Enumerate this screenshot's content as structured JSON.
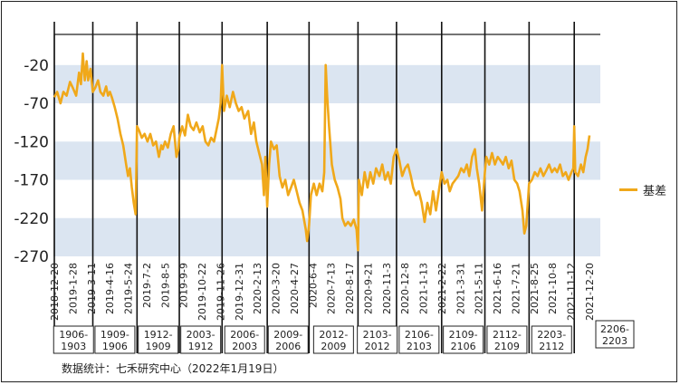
{
  "chart_data": {
    "type": "line",
    "title": "",
    "xlabel": "",
    "ylabel": "",
    "ylim": [
      -270,
      20
    ],
    "y_ticks": [
      -20,
      -70,
      -120,
      -170,
      -220,
      -270
    ],
    "grid": "horizontal alternating bands",
    "series": [
      {
        "name": "基差",
        "color": "#f0a81a",
        "points": [
          [
            "2018-12-20",
            -62
          ],
          [
            "2018-12-26",
            -55
          ],
          [
            "2019-01-02",
            -70
          ],
          [
            "2019-01-08",
            -55
          ],
          [
            "2019-01-15",
            -60
          ],
          [
            "2019-01-22",
            -42
          ],
          [
            "2019-01-28",
            -50
          ],
          [
            "2019-02-04",
            -60
          ],
          [
            "2019-02-10",
            -30
          ],
          [
            "2019-02-14",
            -45
          ],
          [
            "2019-02-18",
            -5
          ],
          [
            "2019-02-22",
            -40
          ],
          [
            "2019-02-26",
            -15
          ],
          [
            "2019-03-01",
            -40
          ],
          [
            "2019-03-06",
            -25
          ],
          [
            "2019-03-11",
            -55
          ],
          [
            "2019-03-16",
            -50
          ],
          [
            "2019-03-22",
            -40
          ],
          [
            "2019-03-27",
            -55
          ],
          [
            "2019-04-02",
            -60
          ],
          [
            "2019-04-08",
            -48
          ],
          [
            "2019-04-12",
            -60
          ],
          [
            "2019-04-16",
            -55
          ],
          [
            "2019-04-20",
            -62
          ],
          [
            "2019-04-26",
            -75
          ],
          [
            "2019-05-02",
            -90
          ],
          [
            "2019-05-08",
            -110
          ],
          [
            "2019-05-14",
            -125
          ],
          [
            "2019-05-20",
            -150
          ],
          [
            "2019-05-24",
            -165
          ],
          [
            "2019-05-28",
            -155
          ],
          [
            "2019-06-01",
            -180
          ],
          [
            "2019-06-05",
            -200
          ],
          [
            "2019-06-09",
            -215
          ],
          [
            "2019-06-12",
            -100
          ],
          [
            "2019-06-16",
            -105
          ],
          [
            "2019-06-22",
            -115
          ],
          [
            "2019-06-28",
            -110
          ],
          [
            "2019-07-04",
            -120
          ],
          [
            "2019-07-10",
            -110
          ],
          [
            "2019-07-16",
            -125
          ],
          [
            "2019-07-22",
            -120
          ],
          [
            "2019-07-28",
            -140
          ],
          [
            "2019-08-02",
            -125
          ],
          [
            "2019-08-05",
            -130
          ],
          [
            "2019-08-10",
            -120
          ],
          [
            "2019-08-16",
            -128
          ],
          [
            "2019-08-22",
            -110
          ],
          [
            "2019-08-28",
            -100
          ],
          [
            "2019-09-03",
            -140
          ],
          [
            "2019-09-07",
            -130
          ],
          [
            "2019-09-09",
            -115
          ],
          [
            "2019-09-15",
            -100
          ],
          [
            "2019-09-21",
            -112
          ],
          [
            "2019-09-27",
            -85
          ],
          [
            "2019-10-03",
            -100
          ],
          [
            "2019-10-09",
            -105
          ],
          [
            "2019-10-15",
            -95
          ],
          [
            "2019-10-22",
            -108
          ],
          [
            "2019-10-28",
            -100
          ],
          [
            "2019-11-03",
            -120
          ],
          [
            "2019-11-09",
            -125
          ],
          [
            "2019-11-15",
            -115
          ],
          [
            "2019-11-21",
            -120
          ],
          [
            "2019-11-26",
            -105
          ],
          [
            "2019-12-01",
            -90
          ],
          [
            "2019-12-05",
            -70
          ],
          [
            "2019-12-08",
            -20
          ],
          [
            "2019-12-12",
            -80
          ],
          [
            "2019-12-18",
            -60
          ],
          [
            "2019-12-24",
            -75
          ],
          [
            "2019-12-31",
            -55
          ],
          [
            "2020-01-06",
            -70
          ],
          [
            "2020-01-12",
            -80
          ],
          [
            "2020-01-18",
            -75
          ],
          [
            "2020-01-24",
            -90
          ],
          [
            "2020-02-01",
            -80
          ],
          [
            "2020-02-07",
            -110
          ],
          [
            "2020-02-13",
            -95
          ],
          [
            "2020-02-18",
            -120
          ],
          [
            "2020-02-24",
            -135
          ],
          [
            "2020-03-01",
            -150
          ],
          [
            "2020-03-05",
            -190
          ],
          [
            "2020-03-08",
            -140
          ],
          [
            "2020-03-12",
            -205
          ],
          [
            "2020-03-16",
            -150
          ],
          [
            "2020-03-20",
            -120
          ],
          [
            "2020-03-26",
            -130
          ],
          [
            "2020-04-01",
            -125
          ],
          [
            "2020-04-07",
            -165
          ],
          [
            "2020-04-13",
            -180
          ],
          [
            "2020-04-19",
            -170
          ],
          [
            "2020-04-25",
            -190
          ],
          [
            "2020-05-01",
            -180
          ],
          [
            "2020-05-07",
            -170
          ],
          [
            "2020-05-13",
            -185
          ],
          [
            "2020-05-19",
            -200
          ],
          [
            "2020-05-25",
            -210
          ],
          [
            "2020-06-01",
            -235
          ],
          [
            "2020-06-04",
            -250
          ],
          [
            "2020-06-08",
            -230
          ],
          [
            "2020-06-12",
            -190
          ],
          [
            "2020-06-18",
            -175
          ],
          [
            "2020-06-24",
            -190
          ],
          [
            "2020-06-30",
            -175
          ],
          [
            "2020-07-06",
            -185
          ],
          [
            "2020-07-10",
            -160
          ],
          [
            "2020-07-13",
            -20
          ],
          [
            "2020-07-16",
            -60
          ],
          [
            "2020-07-20",
            -100
          ],
          [
            "2020-07-26",
            -150
          ],
          [
            "2020-08-01",
            -170
          ],
          [
            "2020-08-07",
            -180
          ],
          [
            "2020-08-13",
            -195
          ],
          [
            "2020-08-17",
            -220
          ],
          [
            "2020-08-23",
            -230
          ],
          [
            "2020-08-29",
            -225
          ],
          [
            "2020-09-04",
            -230
          ],
          [
            "2020-09-10",
            -222
          ],
          [
            "2020-09-16",
            -235
          ],
          [
            "2020-09-19",
            -262
          ],
          [
            "2020-09-21",
            -170
          ],
          [
            "2020-09-27",
            -190
          ],
          [
            "2020-10-03",
            -160
          ],
          [
            "2020-10-09",
            -180
          ],
          [
            "2020-10-15",
            -160
          ],
          [
            "2020-10-21",
            -175
          ],
          [
            "2020-10-27",
            -155
          ],
          [
            "2020-11-03",
            -165
          ],
          [
            "2020-11-09",
            -150
          ],
          [
            "2020-11-15",
            -170
          ],
          [
            "2020-11-21",
            -160
          ],
          [
            "2020-11-27",
            -175
          ],
          [
            "2020-12-03",
            -140
          ],
          [
            "2020-12-09",
            -130
          ],
          [
            "2020-12-15",
            -145
          ],
          [
            "2020-12-21",
            -165
          ],
          [
            "2020-12-27",
            -155
          ],
          [
            "2021-01-02",
            -150
          ],
          [
            "2021-01-08",
            -165
          ],
          [
            "2021-01-13",
            -180
          ],
          [
            "2021-01-19",
            -190
          ],
          [
            "2021-01-25",
            -185
          ],
          [
            "2021-01-31",
            -200
          ],
          [
            "2021-02-06",
            -225
          ],
          [
            "2021-02-12",
            -200
          ],
          [
            "2021-02-18",
            -215
          ],
          [
            "2021-02-24",
            -185
          ],
          [
            "2021-03-02",
            -210
          ],
          [
            "2021-03-08",
            -185
          ],
          [
            "2021-03-14",
            -160
          ],
          [
            "2021-03-20",
            -175
          ],
          [
            "2021-03-26",
            -170
          ],
          [
            "2021-03-31",
            -185
          ],
          [
            "2021-04-06",
            -175
          ],
          [
            "2021-04-12",
            -170
          ],
          [
            "2021-04-18",
            -165
          ],
          [
            "2021-04-24",
            -155
          ],
          [
            "2021-04-30",
            -160
          ],
          [
            "2021-05-06",
            -150
          ],
          [
            "2021-05-11",
            -165
          ],
          [
            "2021-05-17",
            -140
          ],
          [
            "2021-05-23",
            -130
          ],
          [
            "2021-05-27",
            -155
          ],
          [
            "2021-06-01",
            -175
          ],
          [
            "2021-06-07",
            -210
          ],
          [
            "2021-06-13",
            -160
          ],
          [
            "2021-06-16",
            -140
          ],
          [
            "2021-06-22",
            -150
          ],
          [
            "2021-06-28",
            -135
          ],
          [
            "2021-07-04",
            -150
          ],
          [
            "2021-07-10",
            -140
          ],
          [
            "2021-07-16",
            -145
          ],
          [
            "2021-07-21",
            -150
          ],
          [
            "2021-07-27",
            -140
          ],
          [
            "2021-08-02",
            -155
          ],
          [
            "2021-08-08",
            -145
          ],
          [
            "2021-08-14",
            -170
          ],
          [
            "2021-08-20",
            -175
          ],
          [
            "2021-08-25",
            -185
          ],
          [
            "2021-08-31",
            -210
          ],
          [
            "2021-09-04",
            -240
          ],
          [
            "2021-09-08",
            -230
          ],
          [
            "2021-09-14",
            -175
          ],
          [
            "2021-09-20",
            -170
          ],
          [
            "2021-09-26",
            -160
          ],
          [
            "2021-10-02",
            -165
          ],
          [
            "2021-10-08",
            -155
          ],
          [
            "2021-10-14",
            -165
          ],
          [
            "2021-10-20",
            -158
          ],
          [
            "2021-10-26",
            -150
          ],
          [
            "2021-11-01",
            -160
          ],
          [
            "2021-11-07",
            -155
          ],
          [
            "2021-11-12",
            -160
          ],
          [
            "2021-11-18",
            -150
          ],
          [
            "2021-11-24",
            -165
          ],
          [
            "2021-11-30",
            -160
          ],
          [
            "2021-12-06",
            -170
          ],
          [
            "2021-12-12",
            -160
          ],
          [
            "2021-12-16",
            -155
          ],
          [
            "2021-12-18",
            -100
          ],
          [
            "2021-12-20",
            -160
          ],
          [
            "2021-12-26",
            -165
          ],
          [
            "2022-01-01",
            -150
          ],
          [
            "2022-01-06",
            -160
          ],
          [
            "2022-01-11",
            -140
          ],
          [
            "2022-01-15",
            -130
          ],
          [
            "2022-01-19",
            -112
          ]
        ]
      }
    ],
    "x_tick_labels": [
      "2018-12-20",
      "2019-1-28",
      "2019-3-11",
      "2019-4-16",
      "2019-5-24",
      "2019-7-2",
      "2019-8-5",
      "2019-9-9",
      "2019-10-22",
      "2019-11-26",
      "2019-12-31",
      "2020-2-13",
      "2020-3-20",
      "2020-4-27",
      "2020-6-4",
      "2020-7-13",
      "2020-8-17",
      "2020-9-21",
      "2020-11-3",
      "2020-12-8",
      "2021-1-13",
      "2021-2-22",
      "2021-3-31",
      "2021-5-11",
      "2021-6-16",
      "2021-7-21",
      "2021-8-25",
      "2021-10-8",
      "2021-11-12",
      "2021-12-20"
    ],
    "contract_boundaries": [
      "2018-12-20",
      "2019-03-11",
      "2019-06-12",
      "2019-09-09",
      "2019-12-08",
      "2020-03-12",
      "2020-06-08",
      "2020-09-19",
      "2020-12-09",
      "2021-03-14",
      "2021-06-13",
      "2021-09-14",
      "2021-12-18"
    ],
    "contract_labels": [
      {
        "line1": "1906-",
        "line2": "1903"
      },
      {
        "line1": "1909-",
        "line2": "1906"
      },
      {
        "line1": "1912-",
        "line2": "1909"
      },
      {
        "line1": "2003-",
        "line2": "1912"
      },
      {
        "line1": "2006-",
        "line2": "2003"
      },
      {
        "line1": "2009-",
        "line2": "2006"
      },
      {
        "line1": "2012-",
        "line2": "2009"
      },
      {
        "line1": "2103-",
        "line2": "2012"
      },
      {
        "line1": "2106-",
        "line2": "2103"
      },
      {
        "line1": "2109-",
        "line2": "2106"
      },
      {
        "line1": "2112-",
        "line2": "2109"
      },
      {
        "line1": "2203-",
        "line2": "2112"
      },
      {
        "line1": "2206-",
        "line2": "2203"
      }
    ],
    "legend": {
      "label": "基差",
      "position": "right"
    }
  },
  "footer": {
    "source": "数据统计：七禾研究中心（2022年1月19日）"
  }
}
